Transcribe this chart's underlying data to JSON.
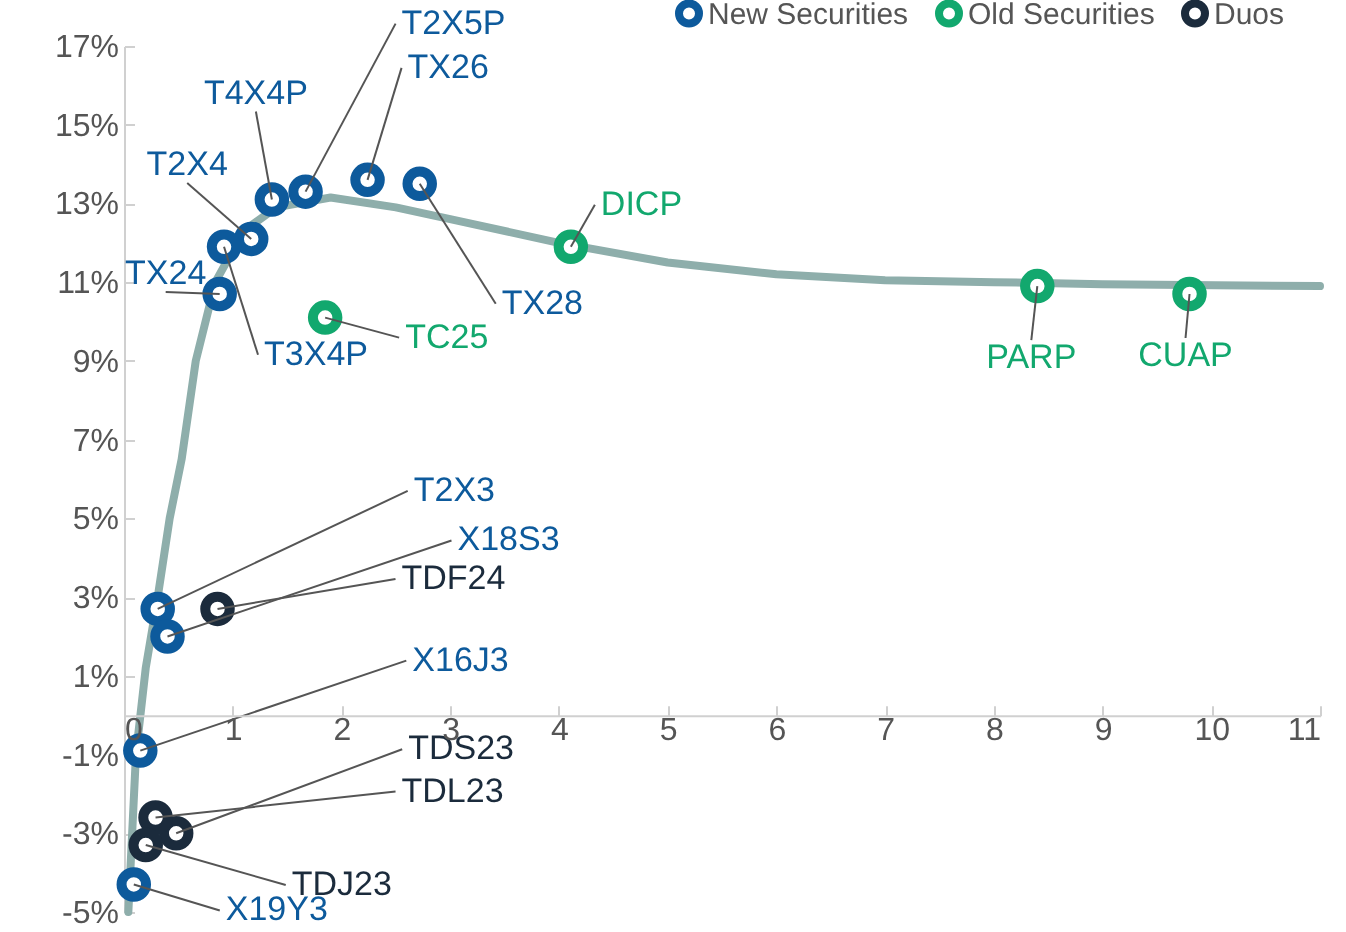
{
  "chart_data": {
    "type": "scatter",
    "xlim": [
      0,
      11
    ],
    "ylim": [
      -5,
      17
    ],
    "xticks": [
      0,
      1,
      2,
      3,
      4,
      5,
      6,
      7,
      8,
      9,
      10,
      11
    ],
    "yticks": [
      {
        "value": -5,
        "label": "-5%"
      },
      {
        "value": -3,
        "label": "-3%"
      },
      {
        "value": -1,
        "label": "-1%"
      },
      {
        "value": 1,
        "label": "1%"
      },
      {
        "value": 3,
        "label": "3%"
      },
      {
        "value": 5,
        "label": "5%"
      },
      {
        "value": 7,
        "label": "7%"
      },
      {
        "value": 9,
        "label": "9%"
      },
      {
        "value": 11,
        "label": "11%"
      },
      {
        "value": 13,
        "label": "13%"
      },
      {
        "value": 15,
        "label": "15%"
      },
      {
        "value": 17,
        "label": "17%"
      }
    ],
    "grid": false,
    "legend": "top right",
    "marker": "circle",
    "series": [
      {
        "name": "New Securities",
        "color": "#0d5a9c",
        "x": [
          1.36,
          1.67,
          2.24,
          2.72,
          1.17,
          0.88,
          0.92,
          0.31,
          0.4,
          0.15,
          0.09
        ],
        "values": [
          13.1,
          13.3,
          13.6,
          13.5,
          12.1,
          10.7,
          11.9,
          2.7,
          2.0,
          -0.9,
          -4.3
        ]
      },
      {
        "name": "Old Securities",
        "color": "#12a86e",
        "x": [
          1.85,
          4.11,
          8.4,
          9.8
        ],
        "values": [
          10.1,
          11.9,
          10.9,
          10.7
        ]
      },
      {
        "name": "Duos",
        "color": "#1b2b3c",
        "x": [
          0.86,
          0.48,
          0.29,
          0.2
        ],
        "values": [
          2.7,
          -3.0,
          -2.6,
          -3.3
        ]
      },
      {
        "type": "line",
        "marker": "none",
        "color": "#8eaeab",
        "x": [
          0.04,
          0.11,
          0.2,
          0.31,
          0.42,
          0.53,
          0.66,
          0.84,
          1.1,
          1.4,
          1.9,
          2.5,
          3,
          4,
          5,
          6,
          7,
          8,
          9,
          11
        ],
        "values": [
          -5,
          -1,
          1.2,
          3,
          5,
          6.5,
          9,
          11,
          12.3,
          12.9,
          13.15,
          12.9,
          12.6,
          12.0,
          11.5,
          11.2,
          11.05,
          11.0,
          10.95,
          10.9
        ]
      }
    ],
    "annotations": [
      {
        "text": "T4X4P",
        "x": 1.36,
        "y": 13.1
      },
      {
        "text": "T2X5P",
        "x": 1.67,
        "y": 13.3
      },
      {
        "text": "TX26",
        "x": 2.24,
        "y": 13.6
      },
      {
        "text": "TX28",
        "x": 2.72,
        "y": 13.5
      },
      {
        "text": "T2X4",
        "x": 1.17,
        "y": 12.1
      },
      {
        "text": "TX24",
        "x": 0.88,
        "y": 10.7
      },
      {
        "text": "T3X4P",
        "x": 0.92,
        "y": 11.9
      },
      {
        "text": "TC25",
        "x": 1.85,
        "y": 10.1
      },
      {
        "text": "DICP",
        "x": 4.11,
        "y": 11.9
      },
      {
        "text": "PARP",
        "x": 8.4,
        "y": 10.9
      },
      {
        "text": "CUAP",
        "x": 9.8,
        "y": 10.7
      },
      {
        "text": "T2X3",
        "x": 0.31,
        "y": 2.7
      },
      {
        "text": "X18S3",
        "x": 0.4,
        "y": 2.0
      },
      {
        "text": "TDF24",
        "x": 0.86,
        "y": 2.7
      },
      {
        "text": "X16J3",
        "x": 0.15,
        "y": -0.9
      },
      {
        "text": "TDS23",
        "x": 0.48,
        "y": -3.0
      },
      {
        "text": "TDL23",
        "x": 0.29,
        "y": -2.6
      },
      {
        "text": "TDJ23",
        "x": 0.2,
        "y": -3.3
      },
      {
        "text": "X19Y3",
        "x": 0.09,
        "y": -4.3
      }
    ]
  }
}
